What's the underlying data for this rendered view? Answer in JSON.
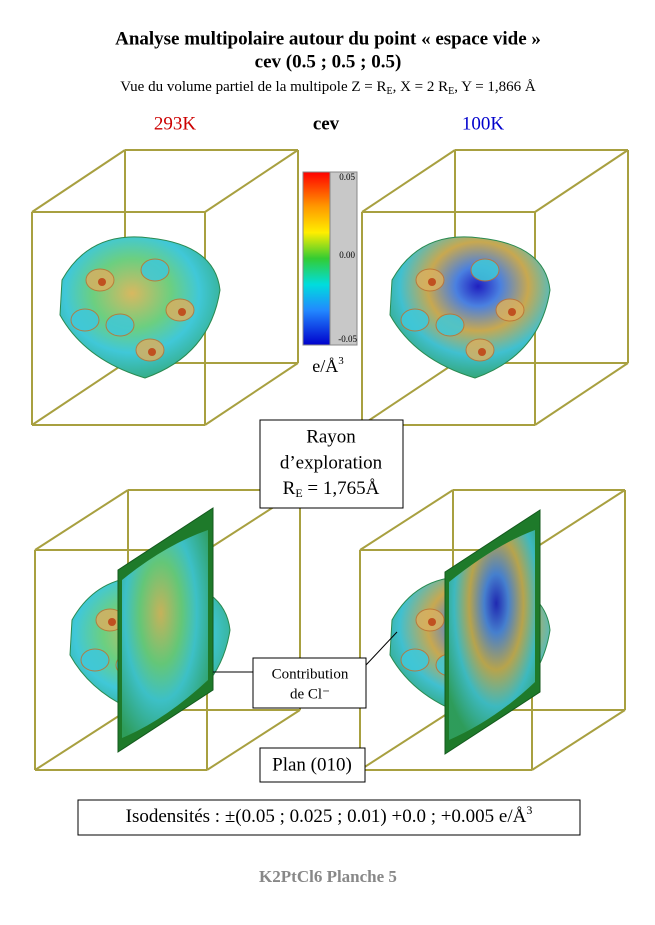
{
  "header": {
    "title": "Analyse multipolaire autour du point « espace vide »",
    "subtitle": "cev (0.5 ; 0.5 ; 0.5)",
    "description": [
      "Vue du volume partiel de la multipole Z = R",
      "E",
      ",  X = 2 R",
      "E",
      ",  Y = 1,866 Å"
    ]
  },
  "labels": {
    "left": "293K",
    "center": "cev",
    "right": "100K"
  },
  "colorbar": {
    "ticks": [
      "0.05",
      "0.00",
      "-0.05"
    ],
    "unit": "e/Å",
    "unit_sup": "3"
  },
  "radius_box": {
    "line1": "Rayon",
    "line2": "d’exploration",
    "symbol": "R",
    "symbol_sub": "E",
    "value": " = 1,765Å"
  },
  "contribution_box": {
    "line1": "Contribution",
    "line2": "de Cl⁻"
  },
  "plane_box": {
    "text": "Plan (010)"
  },
  "isodensity_box": {
    "text": "Isodensités : ±(0.05 ; 0.025 ; 0.01) +0.0 ; +0.005 e/Å",
    "sup": "3"
  },
  "footer": {
    "text": "K2PtCl6 Planche 5"
  }
}
